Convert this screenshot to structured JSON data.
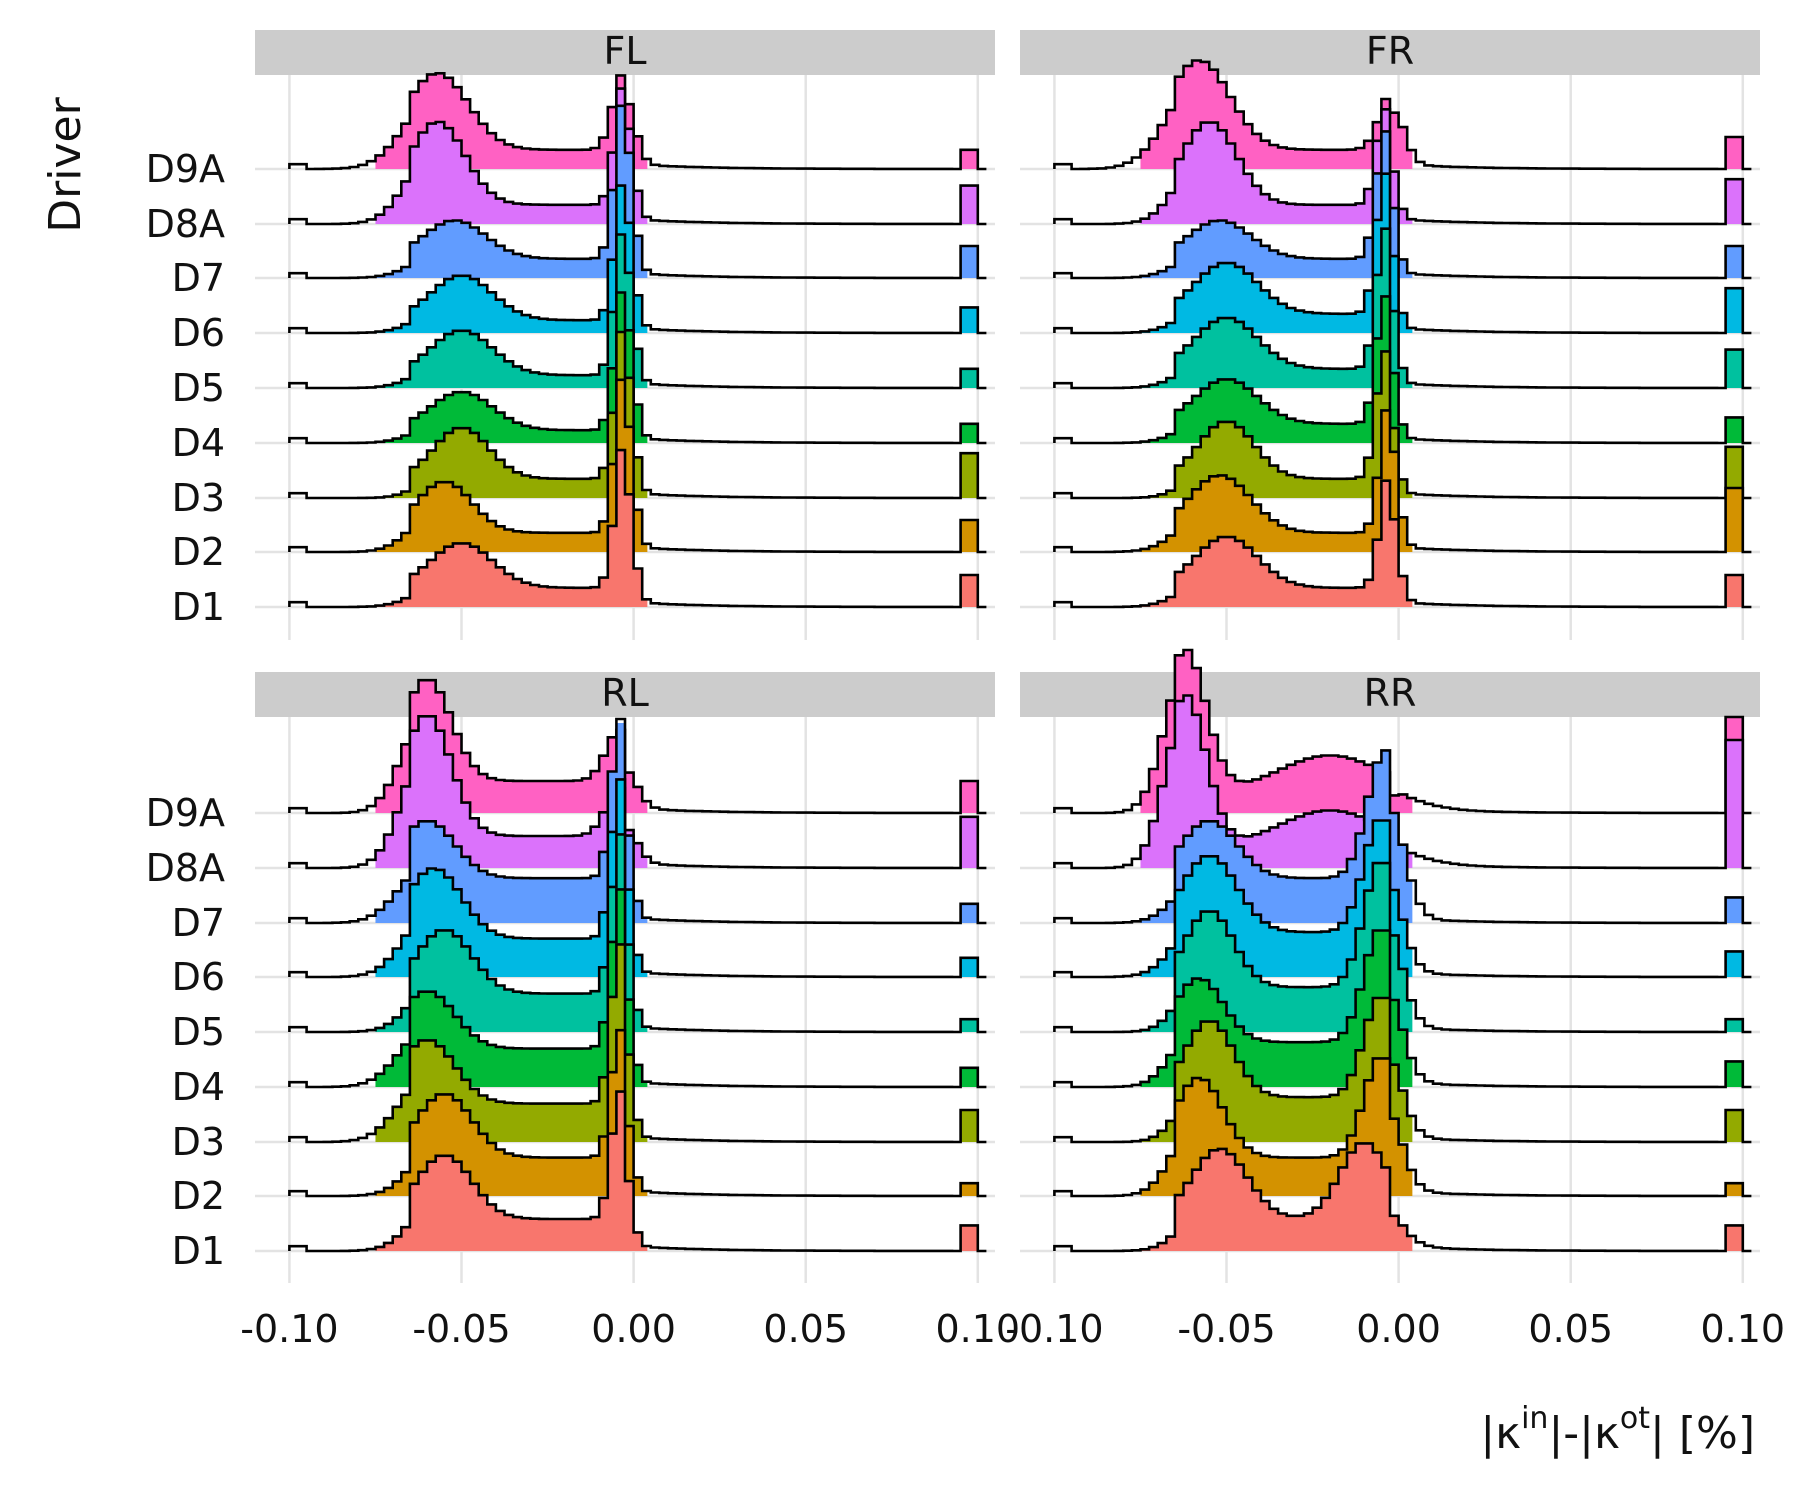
{
  "chart_data": {
    "type": "ridgeline-histogram",
    "y_axis_title": "Driver",
    "x_axis_title": {
      "base1": "|κ",
      "sup1": "in",
      "mid": "|-|κ",
      "sup2": "ot",
      "end": "| [%]"
    },
    "xlim": [
      -0.11,
      0.105
    ],
    "x_ticks": [
      -0.1,
      -0.05,
      0.0,
      0.05,
      0.1
    ],
    "x_tick_labels": [
      "-0.10",
      "-0.05",
      "0.00",
      "0.05",
      "0.10"
    ],
    "drivers": [
      "D1",
      "D2",
      "D3",
      "D4",
      "D5",
      "D6",
      "D7",
      "D8A",
      "D9A"
    ],
    "colors": {
      "D1": "#F8766D",
      "D2": "#D39200",
      "D3": "#93AA00",
      "D4": "#00BA38",
      "D5": "#00C19F",
      "D6": "#00B9E3",
      "D7": "#619CFF",
      "D8A": "#DB72FB",
      "D9A": "#FF61C3"
    },
    "panels": [
      {
        "name": "FL",
        "series": {
          "D1": {
            "peaks": [
              [
                -0.05,
                0.009,
                0.014
              ],
              [
                -0.003,
                0.0025,
                0.045
              ]
            ],
            "low": 0.006,
            "spike": 0.01
          },
          "D2": {
            "peaks": [
              [
                -0.055,
                0.008,
                0.016
              ],
              [
                -0.003,
                0.0025,
                0.05
              ]
            ],
            "low": 0.006,
            "spike": 0.01
          },
          "D3": {
            "peaks": [
              [
                -0.05,
                0.008,
                0.016
              ],
              [
                -0.003,
                0.0025,
                0.048
              ]
            ],
            "low": 0.006,
            "spike": 0.014
          },
          "D4": {
            "peaks": [
              [
                -0.05,
                0.009,
                0.012
              ],
              [
                -0.003,
                0.0025,
                0.045
              ]
            ],
            "low": 0.004,
            "spike": 0.006
          },
          "D5": {
            "peaks": [
              [
                -0.05,
                0.009,
                0.014
              ],
              [
                -0.003,
                0.0025,
                0.046
              ]
            ],
            "low": 0.004,
            "spike": 0.006
          },
          "D6": {
            "peaks": [
              [
                -0.05,
                0.009,
                0.014
              ],
              [
                -0.003,
                0.0025,
                0.044
              ]
            ],
            "low": 0.004,
            "spike": 0.008
          },
          "D7": {
            "peaks": [
              [
                -0.052,
                0.009,
                0.012
              ],
              [
                -0.003,
                0.0025,
                0.05
              ]
            ],
            "low": 0.006,
            "spike": 0.01
          },
          "D8A": {
            "peaks": [
              [
                -0.057,
                0.008,
                0.026
              ],
              [
                -0.003,
                0.0025,
                0.038
              ]
            ],
            "low": 0.006,
            "spike": 0.012
          },
          "D9A": {
            "peaks": [
              [
                -0.057,
                0.009,
                0.024
              ],
              [
                -0.003,
                0.003,
                0.024
              ]
            ],
            "low": 0.006,
            "spike": 0.006
          }
        }
      },
      {
        "name": "FR",
        "series": {
          "D1": {
            "peaks": [
              [
                -0.05,
                0.009,
                0.016
              ],
              [
                -0.003,
                0.0025,
                0.035
              ]
            ],
            "low": 0.006,
            "spike": 0.01
          },
          "D2": {
            "peaks": [
              [
                -0.052,
                0.009,
                0.018
              ],
              [
                -0.003,
                0.0025,
                0.04
              ]
            ],
            "low": 0.006,
            "spike": 0.02
          },
          "D3": {
            "peaks": [
              [
                -0.05,
                0.008,
                0.018
              ],
              [
                -0.004,
                0.0025,
                0.04
              ]
            ],
            "low": 0.006,
            "spike": 0.016
          },
          "D4": {
            "peaks": [
              [
                -0.05,
                0.009,
                0.014
              ],
              [
                -0.004,
                0.0025,
                0.04
              ]
            ],
            "low": 0.006,
            "spike": 0.008
          },
          "D5": {
            "peaks": [
              [
                -0.05,
                0.009,
                0.016
              ],
              [
                -0.004,
                0.0025,
                0.044
              ]
            ],
            "low": 0.006,
            "spike": 0.012
          },
          "D6": {
            "peaks": [
              [
                -0.05,
                0.009,
                0.016
              ],
              [
                -0.004,
                0.0025,
                0.044
              ]
            ],
            "low": 0.006,
            "spike": 0.014
          },
          "D7": {
            "peaks": [
              [
                -0.052,
                0.009,
                0.012
              ],
              [
                -0.004,
                0.0025,
                0.04
              ]
            ],
            "low": 0.006,
            "spike": 0.01
          },
          "D8A": {
            "peaks": [
              [
                -0.055,
                0.008,
                0.026
              ],
              [
                -0.004,
                0.0025,
                0.03
              ]
            ],
            "low": 0.006,
            "spike": 0.014
          },
          "D9A": {
            "peaks": [
              [
                -0.058,
                0.009,
                0.028
              ],
              [
                -0.002,
                0.0035,
                0.018
              ]
            ],
            "low": 0.006,
            "spike": 0.01
          }
        }
      },
      {
        "name": "RL",
        "series": {
          "D1": {
            "peaks": [
              [
                -0.055,
                0.008,
                0.02
              ],
              [
                -0.004,
                0.0025,
                0.04
              ]
            ],
            "low": 0.01,
            "spike": 0.008
          },
          "D2": {
            "peaks": [
              [
                -0.055,
                0.008,
                0.02
              ],
              [
                -0.004,
                0.0025,
                0.04
              ]
            ],
            "low": 0.012,
            "spike": 0.004
          },
          "D3": {
            "peaks": [
              [
                -0.06,
                0.008,
                0.02
              ],
              [
                -0.004,
                0.0025,
                0.05
              ]
            ],
            "low": 0.012,
            "spike": 0.01
          },
          "D4": {
            "peaks": [
              [
                -0.06,
                0.008,
                0.018
              ],
              [
                -0.004,
                0.0025,
                0.05
              ]
            ],
            "low": 0.012,
            "spike": 0.006
          },
          "D5": {
            "peaks": [
              [
                -0.055,
                0.008,
                0.02
              ],
              [
                -0.004,
                0.0025,
                0.05
              ]
            ],
            "low": 0.012,
            "spike": 0.004
          },
          "D6": {
            "peaks": [
              [
                -0.058,
                0.008,
                0.022
              ],
              [
                -0.004,
                0.0025,
                0.05
              ]
            ],
            "low": 0.012,
            "spike": 0.006
          },
          "D7": {
            "peaks": [
              [
                -0.06,
                0.008,
                0.018
              ],
              [
                -0.004,
                0.0025,
                0.05
              ]
            ],
            "low": 0.014,
            "spike": 0.006
          },
          "D8A": {
            "peaks": [
              [
                -0.06,
                0.007,
                0.038
              ],
              [
                -0.004,
                0.004,
                0.015
              ]
            ],
            "low": 0.01,
            "spike": 0.016
          },
          "D9A": {
            "peaks": [
              [
                -0.06,
                0.007,
                0.032
              ],
              [
                -0.004,
                0.004,
                0.016
              ]
            ],
            "low": 0.01,
            "spike": 0.01
          }
        }
      },
      {
        "name": "RR",
        "series": {
          "D1": {
            "peaks": [
              [
                -0.052,
                0.008,
                0.022
              ],
              [
                -0.01,
                0.007,
                0.024
              ]
            ],
            "low": 0.01,
            "spike": 0.008
          },
          "D2": {
            "peaks": [
              [
                -0.058,
                0.007,
                0.025
              ],
              [
                -0.005,
                0.005,
                0.032
              ]
            ],
            "low": 0.012,
            "spike": 0.004
          },
          "D3": {
            "peaks": [
              [
                -0.055,
                0.007,
                0.024
              ],
              [
                -0.005,
                0.005,
                0.032
              ]
            ],
            "low": 0.014,
            "spike": 0.01
          },
          "D4": {
            "peaks": [
              [
                -0.058,
                0.007,
                0.02
              ],
              [
                -0.005,
                0.005,
                0.036
              ]
            ],
            "low": 0.014,
            "spike": 0.008
          },
          "D5": {
            "peaks": [
              [
                -0.055,
                0.007,
                0.024
              ],
              [
                -0.005,
                0.005,
                0.04
              ]
            ],
            "low": 0.014,
            "spike": 0.004
          },
          "D6": {
            "peaks": [
              [
                -0.055,
                0.008,
                0.024
              ],
              [
                -0.005,
                0.005,
                0.036
              ]
            ],
            "low": 0.014,
            "spike": 0.008
          },
          "D7": {
            "peaks": [
              [
                -0.055,
                0.008,
                0.018
              ],
              [
                -0.004,
                0.005,
                0.04
              ]
            ],
            "low": 0.014,
            "spike": 0.008
          },
          "D8A": {
            "peaks": [
              [
                -0.062,
                0.006,
                0.048
              ],
              [
                -0.02,
                0.015,
                0.012
              ]
            ],
            "low": 0.006,
            "spike": 0.04
          },
          "D9A": {
            "peaks": [
              [
                -0.062,
                0.006,
                0.045
              ],
              [
                -0.02,
                0.015,
                0.012
              ]
            ],
            "low": 0.006,
            "spike": 0.03
          }
        }
      }
    ]
  }
}
